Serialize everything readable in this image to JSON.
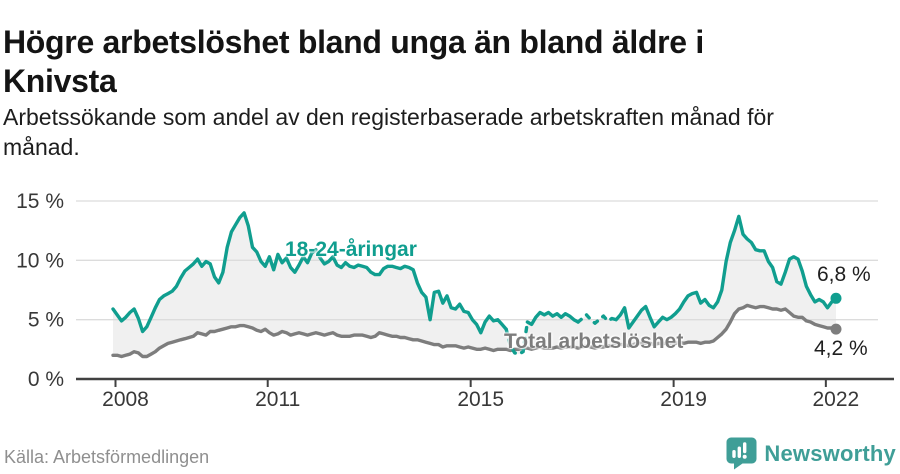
{
  "header": {
    "title": "Högre arbetslöshet bland unga än bland äldre i Knivsta",
    "title_lines": [
      "Högre arbetslöshet bland unga än bland äldre i",
      "Knivsta"
    ],
    "subtitle": "Arbetssökande som andel av den registerbaserade arbetskraften månad för månad.",
    "subtitle_lines": [
      "Arbetssökande som andel av den registerbaserade arbetskraften månad för",
      "månad."
    ]
  },
  "footer": {
    "source": "Källa: Arbetsförmedlingen",
    "brand": "Newsworthy",
    "brand_color": "#3f9e97"
  },
  "chart_data": {
    "type": "line",
    "title": "Högre arbetslöshet bland unga än bland äldre i Knivsta",
    "unit": "%",
    "frequency": "monthly",
    "x_start": "2008-01",
    "x_end": "2022-04",
    "grid": true,
    "area_fill_between_series": true,
    "area_fill_color": "#f0f0f0",
    "ylim": [
      0,
      15.5
    ],
    "x_ticks": [
      {
        "value": 2008,
        "label": "2008"
      },
      {
        "value": 2011,
        "label": "2011"
      },
      {
        "value": 2015,
        "label": "2015"
      },
      {
        "value": 2019,
        "label": "2019"
      },
      {
        "value": 2022,
        "label": "2022"
      }
    ],
    "y_ticks": [
      {
        "value": 0,
        "label": "0 %"
      },
      {
        "value": 5,
        "label": "5 %"
      },
      {
        "value": 10,
        "label": "10 %"
      },
      {
        "value": 15,
        "label": "15 %"
      }
    ],
    "series": [
      {
        "name": "18-24-åringar",
        "color": "#109e8f",
        "end_label": "6,8 %",
        "end_value": 6.8,
        "dashed_month_ranges": [
          [
            93,
            98
          ],
          [
            110,
            119
          ]
        ],
        "values": [
          5.9,
          5.4,
          4.9,
          5.2,
          5.6,
          5.9,
          5.1,
          4.0,
          4.4,
          5.2,
          6.0,
          6.7,
          7.0,
          7.2,
          7.4,
          7.8,
          8.5,
          9.1,
          9.4,
          9.7,
          10.1,
          9.5,
          9.9,
          9.7,
          8.6,
          8.1,
          9.0,
          11.1,
          12.4,
          13.0,
          13.6,
          14.0,
          12.9,
          11.1,
          10.7,
          9.9,
          9.5,
          10.3,
          9.2,
          10.5,
          9.8,
          10.2,
          9.4,
          9.0,
          9.6,
          10.3,
          9.8,
          10.6,
          10.9,
          10.2,
          9.7,
          9.9,
          10.3,
          9.6,
          9.4,
          9.8,
          9.5,
          9.4,
          9.6,
          9.5,
          9.4,
          9.0,
          8.8,
          8.8,
          9.3,
          9.5,
          9.5,
          9.4,
          9.3,
          9.5,
          9.4,
          9.2,
          8.1,
          7.3,
          6.9,
          5.0,
          7.3,
          7.4,
          6.4,
          7.0,
          6.0,
          5.9,
          6.3,
          5.7,
          5.6,
          5.0,
          4.6,
          3.9,
          4.8,
          5.3,
          4.9,
          5.0,
          4.6,
          4.2,
          2.8,
          2.2,
          2.1,
          2.3,
          4.8,
          4.6,
          5.2,
          5.6,
          5.4,
          5.6,
          5.3,
          5.5,
          5.2,
          5.5,
          5.3,
          5.0,
          4.8,
          5.1,
          5.4,
          5.0,
          4.7,
          5.0,
          5.3,
          4.9,
          5.1,
          5.0,
          5.4,
          6.0,
          4.3,
          4.8,
          5.3,
          5.8,
          6.1,
          5.2,
          4.4,
          4.8,
          5.2,
          5.0,
          5.2,
          5.5,
          5.9,
          6.5,
          7.0,
          7.2,
          7.3,
          6.4,
          6.7,
          6.2,
          6.0,
          6.5,
          7.5,
          9.9,
          11.5,
          12.5,
          13.7,
          12.2,
          11.8,
          11.5,
          10.9,
          10.8,
          10.8,
          9.9,
          9.4,
          8.2,
          8.0,
          9.0,
          10.1,
          10.3,
          10.1,
          9.1,
          7.8,
          7.1,
          6.5,
          6.7,
          6.5,
          6.0,
          6.5,
          6.8
        ]
      },
      {
        "name": "Total arbetslöshet",
        "color": "#7d7d7d",
        "end_label": "4,2 %",
        "end_value": 4.2,
        "values": [
          2.0,
          2.0,
          1.9,
          2.0,
          2.1,
          2.3,
          2.2,
          1.9,
          1.9,
          2.1,
          2.3,
          2.6,
          2.8,
          3.0,
          3.1,
          3.2,
          3.3,
          3.4,
          3.5,
          3.6,
          3.9,
          3.8,
          3.7,
          4.0,
          4.0,
          4.1,
          4.2,
          4.3,
          4.4,
          4.4,
          4.5,
          4.5,
          4.4,
          4.3,
          4.1,
          4.0,
          4.2,
          3.9,
          3.7,
          3.8,
          4.0,
          3.9,
          3.7,
          3.8,
          3.9,
          3.8,
          3.7,
          3.8,
          3.9,
          3.8,
          3.7,
          3.8,
          3.9,
          3.7,
          3.6,
          3.6,
          3.6,
          3.7,
          3.7,
          3.7,
          3.6,
          3.5,
          3.6,
          3.9,
          3.8,
          3.7,
          3.6,
          3.6,
          3.5,
          3.5,
          3.4,
          3.3,
          3.3,
          3.2,
          3.1,
          3.0,
          2.9,
          2.9,
          2.7,
          2.8,
          2.8,
          2.8,
          2.7,
          2.6,
          2.7,
          2.6,
          2.5,
          2.5,
          2.6,
          2.5,
          2.4,
          2.5,
          2.5,
          2.5,
          2.4,
          2.5,
          2.5,
          2.6,
          2.6,
          2.5,
          2.6,
          2.7,
          2.6,
          2.6,
          2.6,
          2.7,
          2.6,
          2.7,
          2.7,
          2.7,
          2.6,
          2.7,
          2.8,
          2.7,
          2.6,
          2.7,
          2.7,
          2.8,
          2.8,
          2.9,
          2.9,
          2.9,
          2.8,
          2.9,
          3.0,
          3.0,
          3.0,
          3.0,
          2.9,
          3.0,
          3.0,
          3.0,
          3.0,
          3.0,
          3.1,
          3.0,
          3.1,
          3.1,
          3.1,
          3.0,
          3.1,
          3.1,
          3.2,
          3.5,
          3.8,
          4.2,
          4.8,
          5.5,
          5.9,
          6.0,
          6.2,
          6.1,
          6.0,
          6.1,
          6.1,
          6.0,
          5.9,
          5.9,
          5.8,
          5.9,
          5.6,
          5.3,
          5.2,
          5.2,
          4.9,
          4.8,
          4.6,
          4.5,
          4.4,
          4.3,
          4.3,
          4.2
        ]
      }
    ]
  }
}
